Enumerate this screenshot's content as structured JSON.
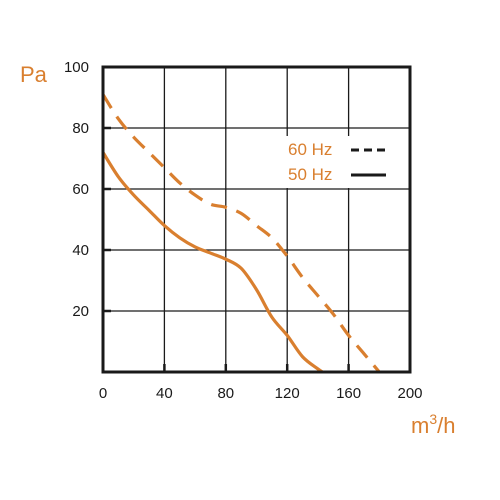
{
  "chart_data": {
    "type": "line",
    "title": "",
    "ylabel": "Pa",
    "xlabel_base": "m",
    "xlabel_sup": "3",
    "xlabel_tail": "/h",
    "xlim": [
      0,
      200
    ],
    "ylim": [
      0,
      100
    ],
    "x_ticks": [
      0,
      40,
      80,
      120,
      160,
      200
    ],
    "y_ticks": [
      20,
      40,
      60,
      80,
      100
    ],
    "grid": true,
    "legend_position": "upper-right",
    "colors": {
      "curve": "#d97f2f",
      "legend_line": "#1a1a1a",
      "axes": "#1a1a1a"
    },
    "series": [
      {
        "name": "60 Hz",
        "style": "dashed",
        "x": [
          0,
          10,
          20,
          30,
          40,
          50,
          60,
          70,
          80,
          90,
          100,
          110,
          120,
          130,
          140,
          150,
          160,
          170,
          180
        ],
        "y": [
          91,
          83,
          77,
          72,
          67,
          62,
          58,
          55,
          54,
          52,
          48,
          44,
          38,
          31,
          25,
          19,
          12,
          6,
          0
        ]
      },
      {
        "name": "50 Hz",
        "style": "solid",
        "x": [
          0,
          10,
          20,
          30,
          40,
          50,
          60,
          70,
          80,
          90,
          100,
          110,
          120,
          130,
          140,
          143
        ],
        "y": [
          72,
          64,
          58,
          53,
          48,
          44,
          41,
          39,
          37,
          34,
          27,
          18,
          12,
          5,
          1,
          0
        ]
      }
    ]
  }
}
